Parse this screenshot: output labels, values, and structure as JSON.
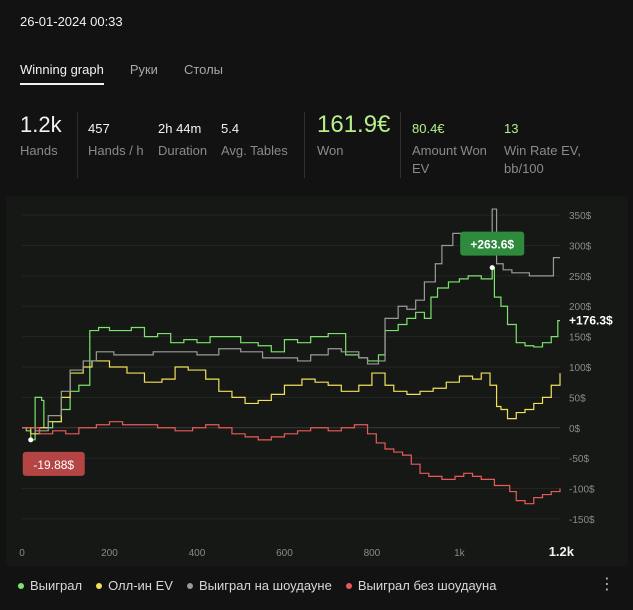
{
  "header": {
    "datetime": "26-01-2024 00:33"
  },
  "tabs": [
    {
      "label": "Winning graph",
      "active": true
    },
    {
      "label": "Руки"
    },
    {
      "label": "Столы"
    }
  ],
  "stats": {
    "hands": {
      "value": "1.2k",
      "label": "Hands"
    },
    "hands_per_hour": {
      "value": "457",
      "label": "Hands / h"
    },
    "duration": {
      "value": "2h 44m",
      "label": "Duration"
    },
    "avg_tables": {
      "value": "5.4",
      "label": "Avg. Tables"
    },
    "won": {
      "value": "161.9€",
      "label": "Won"
    },
    "amount_won_ev": {
      "value": "80.4€",
      "label_line1": "Amount Won",
      "label_line2": "EV"
    },
    "win_rate_ev": {
      "value": "13",
      "label_line1": "Win Rate EV,",
      "label_line2": "bb/100"
    }
  },
  "legend": [
    {
      "label": "Выиграл",
      "color": "#7be36b"
    },
    {
      "label": "Олл-ин EV",
      "color": "#f0e05a"
    },
    {
      "label": "Выиграл на шоудауне",
      "color": "#9a9a9a"
    },
    {
      "label": "Выиграл без шоудауна",
      "color": "#e85a5a"
    }
  ],
  "chart_data": {
    "type": "line",
    "xlabel": "",
    "ylabel": "",
    "xlim": [
      0,
      1230
    ],
    "ylim": [
      -165,
      365
    ],
    "x_ticks": [
      {
        "v": 0,
        "l": "0"
      },
      {
        "v": 200,
        "l": "200"
      },
      {
        "v": 400,
        "l": "400"
      },
      {
        "v": 600,
        "l": "600"
      },
      {
        "v": 800,
        "l": "800"
      },
      {
        "v": 1000,
        "l": "1k"
      }
    ],
    "x_end_label": "1.2k",
    "y_ticks": [
      {
        "v": 350,
        "l": "350$"
      },
      {
        "v": 300,
        "l": "300$"
      },
      {
        "v": 250,
        "l": "250$"
      },
      {
        "v": 200,
        "l": "200$"
      },
      {
        "v": 150,
        "l": "150$"
      },
      {
        "v": 100,
        "l": "100$"
      },
      {
        "v": 50,
        "l": "50$"
      },
      {
        "v": 0,
        "l": "0$"
      },
      {
        "v": -50,
        "l": "-50$"
      },
      {
        "v": -100,
        "l": "-100$"
      },
      {
        "v": -150,
        "l": "-150$"
      }
    ],
    "grid": true,
    "annotations": {
      "max": {
        "label": "+263.6$",
        "x": 1075,
        "y": 263.6
      },
      "min": {
        "label": "-19.88$",
        "x": 20,
        "y": -19.88
      },
      "final": {
        "label": "+176.3$",
        "x": 1230,
        "y": 176.3
      }
    },
    "series": [
      {
        "name": "Выиграл",
        "color": "#7be36b",
        "points": [
          [
            0,
            0
          ],
          [
            10,
            -5
          ],
          [
            20,
            -19.88
          ],
          [
            30,
            50
          ],
          [
            45,
            45
          ],
          [
            50,
            0
          ],
          [
            70,
            10
          ],
          [
            90,
            30
          ],
          [
            110,
            60
          ],
          [
            130,
            70
          ],
          [
            155,
            160
          ],
          [
            175,
            165
          ],
          [
            200,
            160
          ],
          [
            230,
            160
          ],
          [
            250,
            165
          ],
          [
            280,
            150
          ],
          [
            310,
            155
          ],
          [
            340,
            140
          ],
          [
            370,
            145
          ],
          [
            400,
            140
          ],
          [
            430,
            150
          ],
          [
            460,
            150
          ],
          [
            500,
            140
          ],
          [
            540,
            135
          ],
          [
            570,
            125
          ],
          [
            600,
            145
          ],
          [
            630,
            140
          ],
          [
            660,
            150
          ],
          [
            700,
            155
          ],
          [
            740,
            120
          ],
          [
            770,
            115
          ],
          [
            790,
            110
          ],
          [
            815,
            120
          ],
          [
            830,
            160
          ],
          [
            860,
            170
          ],
          [
            880,
            180
          ],
          [
            900,
            190
          ],
          [
            920,
            180
          ],
          [
            935,
            215
          ],
          [
            950,
            230
          ],
          [
            975,
            240
          ],
          [
            1000,
            245
          ],
          [
            1020,
            250
          ],
          [
            1050,
            245
          ],
          [
            1075,
            263.6
          ],
          [
            1080,
            215
          ],
          [
            1095,
            200
          ],
          [
            1110,
            170
          ],
          [
            1130,
            140
          ],
          [
            1150,
            135
          ],
          [
            1170,
            133
          ],
          [
            1190,
            140
          ],
          [
            1210,
            150
          ],
          [
            1225,
            176.3
          ],
          [
            1230,
            176.3
          ]
        ]
      },
      {
        "name": "Олл-ин EV",
        "color": "#f0e05a",
        "points": [
          [
            0,
            0
          ],
          [
            20,
            -10
          ],
          [
            40,
            0
          ],
          [
            60,
            10
          ],
          [
            90,
            50
          ],
          [
            110,
            90
          ],
          [
            140,
            100
          ],
          [
            160,
            110
          ],
          [
            200,
            100
          ],
          [
            240,
            90
          ],
          [
            280,
            75
          ],
          [
            320,
            80
          ],
          [
            350,
            100
          ],
          [
            380,
            95
          ],
          [
            420,
            80
          ],
          [
            450,
            60
          ],
          [
            480,
            50
          ],
          [
            510,
            40
          ],
          [
            540,
            45
          ],
          [
            570,
            55
          ],
          [
            600,
            70
          ],
          [
            640,
            80
          ],
          [
            670,
            75
          ],
          [
            700,
            70
          ],
          [
            730,
            60
          ],
          [
            770,
            70
          ],
          [
            800,
            90
          ],
          [
            830,
            70
          ],
          [
            850,
            60
          ],
          [
            880,
            55
          ],
          [
            910,
            60
          ],
          [
            940,
            65
          ],
          [
            970,
            75
          ],
          [
            1000,
            85
          ],
          [
            1030,
            80
          ],
          [
            1050,
            90
          ],
          [
            1070,
            70
          ],
          [
            1085,
            35
          ],
          [
            1095,
            30
          ],
          [
            1110,
            15
          ],
          [
            1130,
            25
          ],
          [
            1150,
            30
          ],
          [
            1170,
            40
          ],
          [
            1190,
            50
          ],
          [
            1210,
            70
          ],
          [
            1230,
            90
          ]
        ]
      },
      {
        "name": "Выиграл на шоудауне",
        "color": "#9a9a9a",
        "points": [
          [
            0,
            0
          ],
          [
            30,
            -5
          ],
          [
            60,
            20
          ],
          [
            90,
            60
          ],
          [
            110,
            95
          ],
          [
            140,
            110
          ],
          [
            170,
            125
          ],
          [
            210,
            120
          ],
          [
            250,
            120
          ],
          [
            300,
            125
          ],
          [
            350,
            125
          ],
          [
            400,
            120
          ],
          [
            450,
            130
          ],
          [
            500,
            125
          ],
          [
            550,
            115
          ],
          [
            590,
            115
          ],
          [
            630,
            110
          ],
          [
            660,
            120
          ],
          [
            700,
            130
          ],
          [
            730,
            125
          ],
          [
            770,
            115
          ],
          [
            790,
            105
          ],
          [
            815,
            110
          ],
          [
            830,
            180
          ],
          [
            860,
            200
          ],
          [
            880,
            195
          ],
          [
            900,
            210
          ],
          [
            920,
            240
          ],
          [
            945,
            270
          ],
          [
            960,
            300
          ],
          [
            985,
            320
          ],
          [
            1015,
            320
          ],
          [
            1040,
            300
          ],
          [
            1060,
            305
          ],
          [
            1075,
            360
          ],
          [
            1085,
            270
          ],
          [
            1100,
            260
          ],
          [
            1120,
            255
          ],
          [
            1160,
            250
          ],
          [
            1200,
            250
          ],
          [
            1215,
            280
          ],
          [
            1230,
            280
          ]
        ]
      },
      {
        "name": "Выиграл без шоудауна",
        "color": "#e85a5a",
        "points": [
          [
            0,
            0
          ],
          [
            40,
            -10
          ],
          [
            70,
            -5
          ],
          [
            100,
            -10
          ],
          [
            130,
            0
          ],
          [
            170,
            5
          ],
          [
            200,
            10
          ],
          [
            230,
            5
          ],
          [
            270,
            5
          ],
          [
            310,
            0
          ],
          [
            350,
            -5
          ],
          [
            390,
            0
          ],
          [
            420,
            5
          ],
          [
            450,
            0
          ],
          [
            480,
            -10
          ],
          [
            510,
            -15
          ],
          [
            540,
            -20
          ],
          [
            570,
            -15
          ],
          [
            600,
            -10
          ],
          [
            630,
            -5
          ],
          [
            660,
            0
          ],
          [
            700,
            -5
          ],
          [
            730,
            0
          ],
          [
            760,
            5
          ],
          [
            790,
            -10
          ],
          [
            810,
            -25
          ],
          [
            830,
            -35
          ],
          [
            850,
            -40
          ],
          [
            870,
            -45
          ],
          [
            890,
            -60
          ],
          [
            910,
            -75
          ],
          [
            930,
            -80
          ],
          [
            960,
            -85
          ],
          [
            990,
            -80
          ],
          [
            1010,
            -75
          ],
          [
            1030,
            -80
          ],
          [
            1050,
            -85
          ],
          [
            1080,
            -95
          ],
          [
            1100,
            -95
          ],
          [
            1115,
            -105
          ],
          [
            1130,
            -120
          ],
          [
            1150,
            -125
          ],
          [
            1170,
            -115
          ],
          [
            1190,
            -110
          ],
          [
            1210,
            -105
          ],
          [
            1230,
            -100
          ]
        ]
      }
    ]
  }
}
